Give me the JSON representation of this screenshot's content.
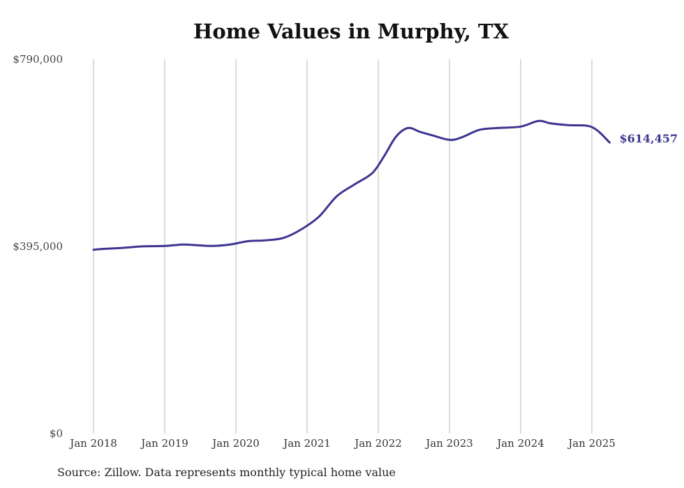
{
  "chart_data": {
    "type": "line",
    "title": "Home Values in Murphy, TX",
    "source": "Source: Zillow. Data represents monthly typical home value",
    "ylim": [
      0,
      790000
    ],
    "yticks": [
      {
        "value": 0,
        "label": "$0"
      },
      {
        "value": 395000,
        "label": "$395,000"
      },
      {
        "value": 790000,
        "label": "$790,000"
      }
    ],
    "xlim": [
      "2018-01",
      "2025-04"
    ],
    "xticks": [
      {
        "date": "2018-01",
        "label": "Jan 2018"
      },
      {
        "date": "2019-01",
        "label": "Jan 2019"
      },
      {
        "date": "2020-01",
        "label": "Jan 2020"
      },
      {
        "date": "2021-01",
        "label": "Jan 2021"
      },
      {
        "date": "2022-01",
        "label": "Jan 2022"
      },
      {
        "date": "2023-01",
        "label": "Jan 2023"
      },
      {
        "date": "2024-01",
        "label": "Jan 2024"
      },
      {
        "date": "2025-01",
        "label": "Jan 2025"
      }
    ],
    "grid": "vertical",
    "colors": {
      "line": "#3d3590",
      "grid": "#b8b8b8"
    },
    "end_label": "$614,457",
    "series": [
      {
        "x": [
          "2018-01",
          "2018-03",
          "2018-06",
          "2018-09",
          "2019-01",
          "2019-04",
          "2019-06",
          "2019-09",
          "2019-12",
          "2020-03",
          "2020-06",
          "2020-09",
          "2020-12",
          "2021-03",
          "2021-06",
          "2021-09",
          "2021-12",
          "2022-02",
          "2022-04",
          "2022-06",
          "2022-08",
          "2022-10",
          "2023-01",
          "2023-03",
          "2023-06",
          "2023-09",
          "2024-01",
          "2024-04",
          "2024-06",
          "2024-09",
          "2025-01",
          "2025-04"
        ],
        "values": [
          388000,
          390000,
          392000,
          395000,
          396000,
          399000,
          398000,
          396000,
          399000,
          406000,
          408000,
          413000,
          431000,
          458000,
          501000,
          526000,
          550000,
          586000,
          627000,
          645000,
          637000,
          630000,
          620000,
          625000,
          641000,
          645000,
          648000,
          660000,
          655000,
          651000,
          647000,
          614457
        ]
      }
    ]
  }
}
